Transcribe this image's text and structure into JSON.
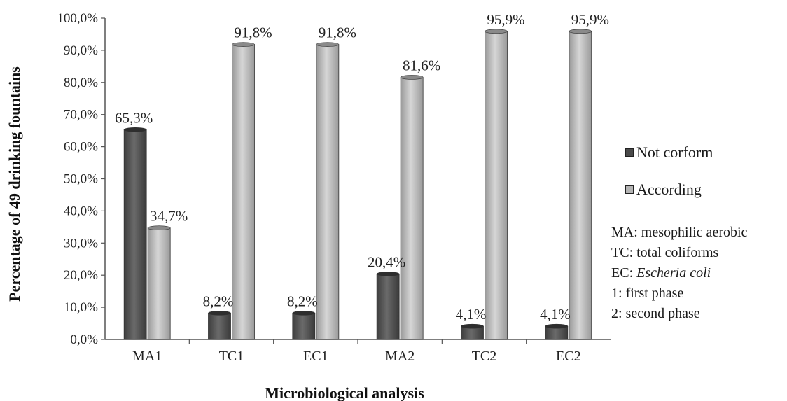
{
  "chart_data": {
    "type": "bar",
    "categories": [
      "MA1",
      "TC1",
      "EC1",
      "MA2",
      "TC2",
      "EC2"
    ],
    "series": [
      {
        "name": "Not corform",
        "values": [
          65.3,
          8.2,
          8.2,
          20.4,
          4.1,
          4.1
        ],
        "labels": [
          "65,3%",
          "8,2%",
          "8,2%",
          "20,4%",
          "4,1%",
          "4,1%"
        ]
      },
      {
        "name": "According",
        "values": [
          34.7,
          91.8,
          91.8,
          81.6,
          95.9,
          95.9
        ],
        "labels": [
          "34,7%",
          "91,8%",
          "91,8%",
          "81,6%",
          "95,9%",
          "95,9%"
        ]
      }
    ],
    "xlabel": "Microbiological analysis",
    "ylabel": "Percentage of 49 drinking fountains",
    "ylim": [
      0,
      100
    ],
    "yticks": [
      "0,0%",
      "10,0%",
      "20,0%",
      "30,0%",
      "40,0%",
      "50,0%",
      "60,0%",
      "70,0%",
      "80,0%",
      "90,0%",
      "100,0%"
    ],
    "grid": false,
    "legend_position": "right",
    "colors": {
      "Not corform": "#5a5a5a",
      "According": "#b4b4b4"
    }
  },
  "notes": [
    {
      "key": "MA",
      "text": "mesophilic aerobic",
      "italic": false
    },
    {
      "key": "TC",
      "text": "total coliforms",
      "italic": false
    },
    {
      "key": "EC",
      "text": "Escheria coli",
      "italic": true
    },
    {
      "key": "1",
      "text": "first phase",
      "italic": false
    },
    {
      "key": "2",
      "text": "second phase",
      "italic": false
    }
  ]
}
